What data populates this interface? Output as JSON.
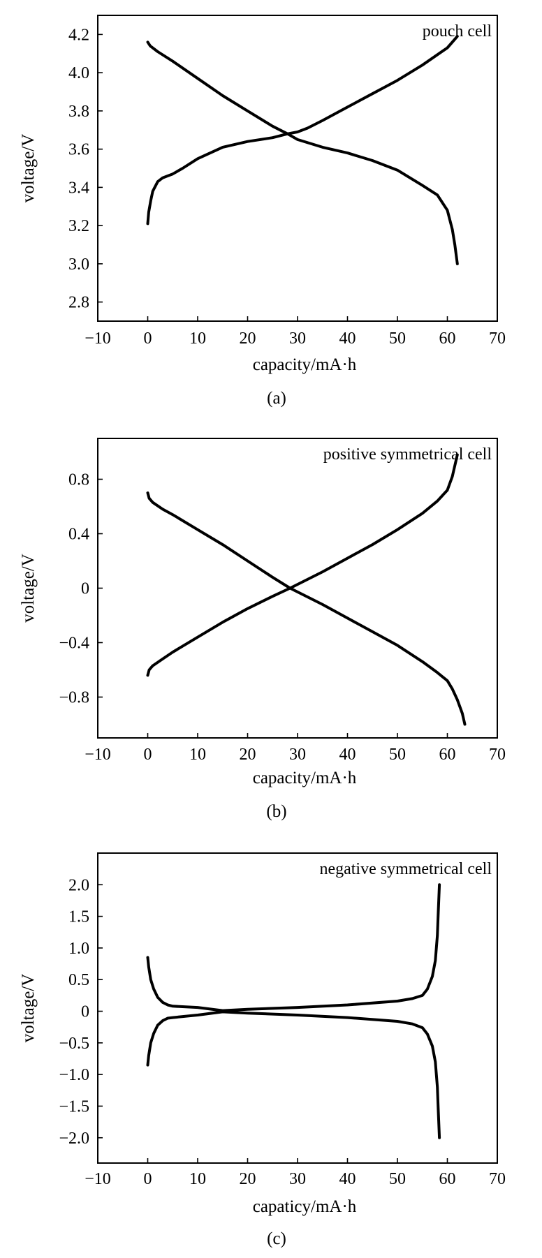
{
  "chart_data": [
    {
      "type": "line",
      "panel_label": "(a)",
      "annotation": "pouch cell",
      "xlabel": "capacity/mA·h",
      "ylabel": "voltage/V",
      "xlim": [
        -10,
        70
      ],
      "ylim": [
        2.7,
        4.3
      ],
      "x_ticks": [
        -10,
        0,
        10,
        20,
        30,
        40,
        50,
        60,
        70
      ],
      "x_tick_labels": [
        "−10",
        "0",
        "10",
        "20",
        "30",
        "40",
        "50",
        "60",
        "70"
      ],
      "y_ticks": [
        2.8,
        3.0,
        3.2,
        3.4,
        3.6,
        3.8,
        4.0,
        4.2
      ],
      "y_tick_labels": [
        "2.8",
        "3.0",
        "3.2",
        "3.4",
        "3.6",
        "3.8",
        "4.0",
        "4.2"
      ],
      "grid": false,
      "legend": "none",
      "series": [
        {
          "x": [
            0,
            0.2,
            0.6,
            1,
            2,
            3,
            5,
            7,
            10,
            15,
            20,
            25,
            28,
            30,
            32,
            35,
            40,
            45,
            50,
            55,
            60,
            62
          ],
          "y": [
            3.21,
            3.27,
            3.33,
            3.38,
            3.43,
            3.45,
            3.47,
            3.5,
            3.55,
            3.61,
            3.64,
            3.66,
            3.68,
            3.69,
            3.71,
            3.75,
            3.82,
            3.89,
            3.96,
            4.04,
            4.13,
            4.19
          ]
        },
        {
          "x": [
            0,
            0.5,
            2,
            5,
            10,
            15,
            20,
            25,
            28,
            30,
            35,
            40,
            45,
            50,
            55,
            58,
            60,
            61,
            61.5,
            62
          ],
          "y": [
            4.16,
            4.14,
            4.11,
            4.06,
            3.97,
            3.88,
            3.8,
            3.72,
            3.68,
            3.65,
            3.61,
            3.58,
            3.54,
            3.49,
            3.41,
            3.36,
            3.28,
            3.18,
            3.1,
            3.0
          ]
        }
      ]
    },
    {
      "type": "line",
      "panel_label": "(b)",
      "annotation": "positive symmetrical cell",
      "xlabel": "capacity/mA·h",
      "ylabel": "voltage/V",
      "xlim": [
        -10,
        70
      ],
      "ylim": [
        -1.1,
        1.1
      ],
      "x_ticks": [
        -10,
        0,
        10,
        20,
        30,
        40,
        50,
        60,
        70
      ],
      "x_tick_labels": [
        "−10",
        "0",
        "10",
        "20",
        "30",
        "40",
        "50",
        "60",
        "70"
      ],
      "y_ticks": [
        -0.8,
        -0.4,
        0,
        0.4,
        0.8
      ],
      "y_tick_labels": [
        "−0.8",
        "−0.4",
        "0",
        "0.4",
        "0.8"
      ],
      "grid": false,
      "legend": "none",
      "series": [
        {
          "x": [
            0,
            0.3,
            1,
            3,
            5,
            10,
            15,
            20,
            25,
            28.5,
            35,
            40,
            45,
            50,
            55,
            58,
            60,
            61,
            62
          ],
          "y": [
            -0.64,
            -0.6,
            -0.57,
            -0.52,
            -0.47,
            -0.36,
            -0.25,
            -0.15,
            -0.06,
            0,
            0.12,
            0.22,
            0.32,
            0.43,
            0.55,
            0.64,
            0.72,
            0.82,
            0.98
          ]
        },
        {
          "x": [
            0,
            0.3,
            1,
            3,
            5,
            10,
            15,
            20,
            25,
            28.5,
            35,
            40,
            45,
            50,
            55,
            58,
            60,
            61,
            62,
            63,
            63.5
          ],
          "y": [
            0.7,
            0.66,
            0.63,
            0.58,
            0.54,
            0.43,
            0.32,
            0.2,
            0.08,
            0,
            -0.12,
            -0.22,
            -0.32,
            -0.42,
            -0.54,
            -0.62,
            -0.68,
            -0.74,
            -0.82,
            -0.92,
            -1.0
          ]
        }
      ]
    },
    {
      "type": "line",
      "panel_label": "(c)",
      "annotation": "negative symmetrical cell",
      "xlabel": "capaticy/mA·h",
      "ylabel": "voltage/V",
      "xlim": [
        -10,
        70
      ],
      "ylim": [
        -2.4,
        2.5
      ],
      "x_ticks": [
        -10,
        0,
        10,
        20,
        30,
        40,
        50,
        60,
        70
      ],
      "x_tick_labels": [
        "−10",
        "0",
        "10",
        "20",
        "30",
        "40",
        "50",
        "60",
        "70"
      ],
      "y_ticks": [
        -2.0,
        -1.5,
        -1.0,
        -0.5,
        0,
        0.5,
        1.0,
        1.5,
        2.0
      ],
      "y_tick_labels": [
        "−2.0",
        "−1.5",
        "−1.0",
        "−0.5",
        "0",
        "0.5",
        "1.0",
        "1.5",
        "2.0"
      ],
      "grid": false,
      "legend": "none",
      "series": [
        {
          "x": [
            0,
            0.2,
            0.6,
            1.2,
            2,
            3,
            4,
            5,
            10,
            15,
            20,
            30,
            40,
            50,
            53,
            55,
            56,
            57,
            57.6,
            58,
            58.2,
            58.4
          ],
          "y": [
            0.85,
            0.7,
            0.5,
            0.35,
            0.22,
            0.14,
            0.1,
            0.08,
            0.06,
            0.01,
            0.03,
            0.06,
            0.1,
            0.16,
            0.2,
            0.25,
            0.35,
            0.55,
            0.8,
            1.2,
            1.6,
            2.0
          ]
        },
        {
          "x": [
            0,
            0.2,
            0.6,
            1.2,
            2,
            3,
            4,
            5,
            10,
            15,
            20,
            30,
            40,
            50,
            53,
            55,
            56,
            57,
            57.6,
            58,
            58.2,
            58.4
          ],
          "y": [
            -0.85,
            -0.7,
            -0.5,
            -0.35,
            -0.22,
            -0.15,
            -0.11,
            -0.1,
            -0.06,
            -0.01,
            -0.03,
            -0.06,
            -0.1,
            -0.16,
            -0.2,
            -0.26,
            -0.36,
            -0.55,
            -0.8,
            -1.2,
            -1.6,
            -2.0
          ]
        }
      ]
    }
  ]
}
